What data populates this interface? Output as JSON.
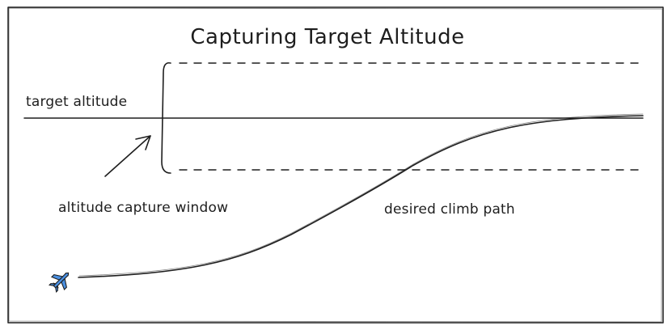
{
  "title": "Capturing Target Altitude",
  "labels": {
    "target_altitude": "target altitude",
    "capture_window": "altitude capture window",
    "climb_path": "desired climb path"
  },
  "icons": {
    "aircraft": "airplane-icon"
  },
  "colors": {
    "ink": "#1e1e1e",
    "aircraft_fill": "#4a90e2",
    "background": "#ffffff"
  }
}
